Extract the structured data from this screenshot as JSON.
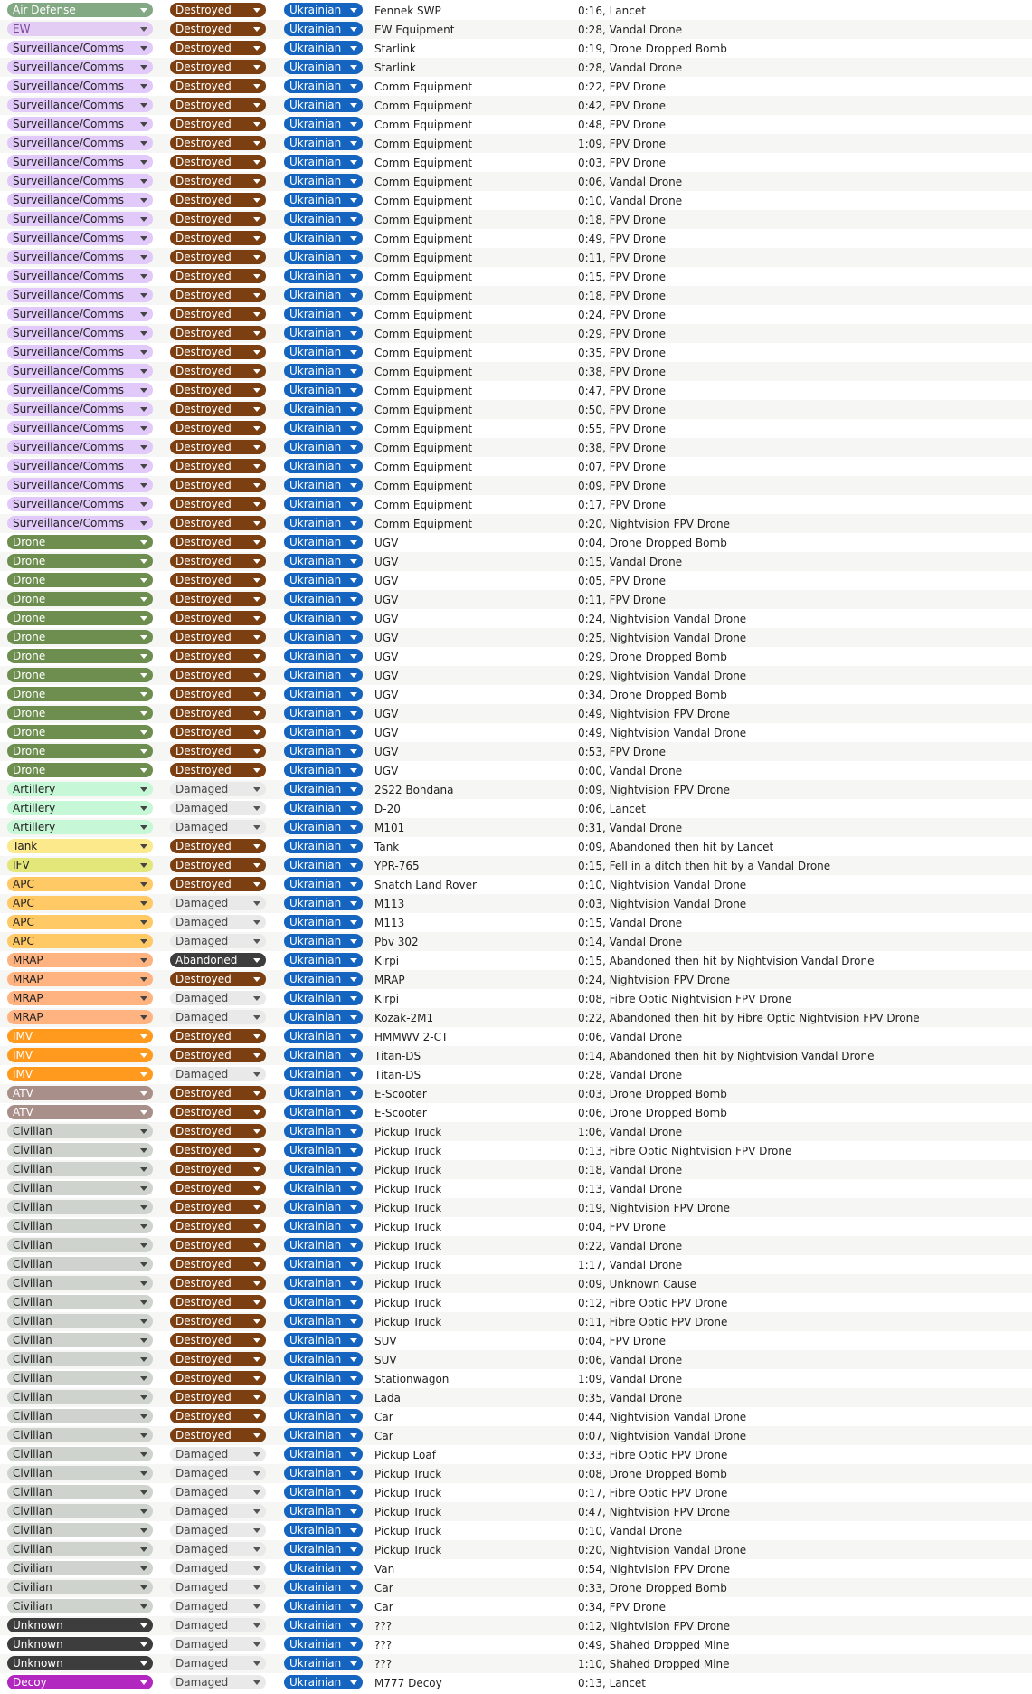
{
  "categories": {
    "Air Defense": {
      "bg": "#83a884",
      "fg": "#ffffff",
      "arrow": "#ffffff"
    },
    "EW": {
      "bg": "#e4cdf5",
      "fg": "#7a4a99",
      "arrow": "#555555"
    },
    "Surveillance/Comms": {
      "bg": "#e1c9f9",
      "fg": "#222222",
      "arrow": "#444444"
    },
    "Drone": {
      "bg": "#6d8e4f",
      "fg": "#ffffff",
      "arrow": "#ffffff"
    },
    "Artillery": {
      "bg": "#c6f7d6",
      "fg": "#222222",
      "arrow": "#444444"
    },
    "Tank": {
      "bg": "#fbe98c",
      "fg": "#222222",
      "arrow": "#444444"
    },
    "IFV": {
      "bg": "#e3e678",
      "fg": "#222222",
      "arrow": "#444444"
    },
    "APC": {
      "bg": "#ffc966",
      "fg": "#222222",
      "arrow": "#444444"
    },
    "MRAP": {
      "bg": "#ffb380",
      "fg": "#222222",
      "arrow": "#444444"
    },
    "IMV": {
      "bg": "#ff9a1f",
      "fg": "#ffffff",
      "arrow": "#ffffff"
    },
    "ATV": {
      "bg": "#a98f8a",
      "fg": "#ffffff",
      "arrow": "#ffffff"
    },
    "Civilian": {
      "bg": "#cfd3cd",
      "fg": "#222222",
      "arrow": "#444444"
    },
    "Unknown": {
      "bg": "#3d3d3d",
      "fg": "#ffffff",
      "arrow": "#ffffff"
    },
    "Decoy": {
      "bg": "#b127bf",
      "fg": "#ffffff",
      "arrow": "#ffffff"
    }
  },
  "statuses": {
    "Destroyed": {
      "bg": "#7b3f11",
      "fg": "#ffffff",
      "arrow": "#ffffff"
    },
    "Damaged": {
      "bg": "#e9e9e9",
      "fg": "#444444",
      "arrow": "#555555"
    },
    "Abandoned": {
      "bg": "#3d3d3d",
      "fg": "#ffffff",
      "arrow": "#ffffff"
    }
  },
  "side_style": {
    "bg": "#1565c0",
    "fg": "#ffffff",
    "arrow": "#ffffff"
  },
  "rows": [
    {
      "category": "Air Defense",
      "status": "Destroyed",
      "side": "Ukrainian",
      "equipment": "Fennek SWP",
      "details": "0:16, Lancet"
    },
    {
      "category": "EW",
      "status": "Destroyed",
      "side": "Ukrainian",
      "equipment": "EW Equipment",
      "details": "0:28, Vandal Drone"
    },
    {
      "category": "Surveillance/Comms",
      "status": "Destroyed",
      "side": "Ukrainian",
      "equipment": "Starlink",
      "details": "0:19, Drone Dropped Bomb"
    },
    {
      "category": "Surveillance/Comms",
      "status": "Destroyed",
      "side": "Ukrainian",
      "equipment": "Starlink",
      "details": "0:28, Vandal Drone"
    },
    {
      "category": "Surveillance/Comms",
      "status": "Destroyed",
      "side": "Ukrainian",
      "equipment": "Comm Equipment",
      "details": "0:22, FPV Drone"
    },
    {
      "category": "Surveillance/Comms",
      "status": "Destroyed",
      "side": "Ukrainian",
      "equipment": "Comm Equipment",
      "details": "0:42, FPV Drone"
    },
    {
      "category": "Surveillance/Comms",
      "status": "Destroyed",
      "side": "Ukrainian",
      "equipment": "Comm Equipment",
      "details": "0:48, FPV Drone"
    },
    {
      "category": "Surveillance/Comms",
      "status": "Destroyed",
      "side": "Ukrainian",
      "equipment": "Comm Equipment",
      "details": "1:09, FPV Drone"
    },
    {
      "category": "Surveillance/Comms",
      "status": "Destroyed",
      "side": "Ukrainian",
      "equipment": "Comm Equipment",
      "details": "0:03, FPV Drone"
    },
    {
      "category": "Surveillance/Comms",
      "status": "Destroyed",
      "side": "Ukrainian",
      "equipment": "Comm Equipment",
      "details": "0:06, Vandal Drone"
    },
    {
      "category": "Surveillance/Comms",
      "status": "Destroyed",
      "side": "Ukrainian",
      "equipment": "Comm Equipment",
      "details": "0:10, Vandal Drone"
    },
    {
      "category": "Surveillance/Comms",
      "status": "Destroyed",
      "side": "Ukrainian",
      "equipment": "Comm Equipment",
      "details": "0:18, FPV Drone"
    },
    {
      "category": "Surveillance/Comms",
      "status": "Destroyed",
      "side": "Ukrainian",
      "equipment": "Comm Equipment",
      "details": "0:49, FPV Drone"
    },
    {
      "category": "Surveillance/Comms",
      "status": "Destroyed",
      "side": "Ukrainian",
      "equipment": "Comm Equipment",
      "details": "0:11, FPV Drone"
    },
    {
      "category": "Surveillance/Comms",
      "status": "Destroyed",
      "side": "Ukrainian",
      "equipment": "Comm Equipment",
      "details": "0:15, FPV Drone"
    },
    {
      "category": "Surveillance/Comms",
      "status": "Destroyed",
      "side": "Ukrainian",
      "equipment": "Comm Equipment",
      "details": "0:18, FPV Drone"
    },
    {
      "category": "Surveillance/Comms",
      "status": "Destroyed",
      "side": "Ukrainian",
      "equipment": "Comm Equipment",
      "details": "0:24, FPV Drone"
    },
    {
      "category": "Surveillance/Comms",
      "status": "Destroyed",
      "side": "Ukrainian",
      "equipment": "Comm Equipment",
      "details": "0:29, FPV Drone"
    },
    {
      "category": "Surveillance/Comms",
      "status": "Destroyed",
      "side": "Ukrainian",
      "equipment": "Comm Equipment",
      "details": "0:35, FPV Drone"
    },
    {
      "category": "Surveillance/Comms",
      "status": "Destroyed",
      "side": "Ukrainian",
      "equipment": "Comm Equipment",
      "details": "0:38, FPV Drone"
    },
    {
      "category": "Surveillance/Comms",
      "status": "Destroyed",
      "side": "Ukrainian",
      "equipment": "Comm Equipment",
      "details": "0:47, FPV Drone"
    },
    {
      "category": "Surveillance/Comms",
      "status": "Destroyed",
      "side": "Ukrainian",
      "equipment": "Comm Equipment",
      "details": "0:50, FPV Drone"
    },
    {
      "category": "Surveillance/Comms",
      "status": "Destroyed",
      "side": "Ukrainian",
      "equipment": "Comm Equipment",
      "details": "0:55, FPV Drone"
    },
    {
      "category": "Surveillance/Comms",
      "status": "Destroyed",
      "side": "Ukrainian",
      "equipment": "Comm Equipment",
      "details": "0:38, FPV Drone"
    },
    {
      "category": "Surveillance/Comms",
      "status": "Destroyed",
      "side": "Ukrainian",
      "equipment": "Comm Equipment",
      "details": "0:07, FPV Drone"
    },
    {
      "category": "Surveillance/Comms",
      "status": "Destroyed",
      "side": "Ukrainian",
      "equipment": "Comm Equipment",
      "details": "0:09, FPV Drone"
    },
    {
      "category": "Surveillance/Comms",
      "status": "Destroyed",
      "side": "Ukrainian",
      "equipment": "Comm Equipment",
      "details": "0:17, FPV Drone"
    },
    {
      "category": "Surveillance/Comms",
      "status": "Destroyed",
      "side": "Ukrainian",
      "equipment": "Comm Equipment",
      "details": "0:20, Nightvision FPV Drone"
    },
    {
      "category": "Drone",
      "status": "Destroyed",
      "side": "Ukrainian",
      "equipment": "UGV",
      "details": "0:04, Drone Dropped Bomb"
    },
    {
      "category": "Drone",
      "status": "Destroyed",
      "side": "Ukrainian",
      "equipment": "UGV",
      "details": "0:15, Vandal Drone"
    },
    {
      "category": "Drone",
      "status": "Destroyed",
      "side": "Ukrainian",
      "equipment": "UGV",
      "details": "0:05, FPV Drone"
    },
    {
      "category": "Drone",
      "status": "Destroyed",
      "side": "Ukrainian",
      "equipment": "UGV",
      "details": "0:11, FPV Drone"
    },
    {
      "category": "Drone",
      "status": "Destroyed",
      "side": "Ukrainian",
      "equipment": "UGV",
      "details": "0:24, Nightvision Vandal Drone"
    },
    {
      "category": "Drone",
      "status": "Destroyed",
      "side": "Ukrainian",
      "equipment": "UGV",
      "details": "0:25, Nightvision Vandal Drone"
    },
    {
      "category": "Drone",
      "status": "Destroyed",
      "side": "Ukrainian",
      "equipment": "UGV",
      "details": "0:29, Drone Dropped Bomb"
    },
    {
      "category": "Drone",
      "status": "Destroyed",
      "side": "Ukrainian",
      "equipment": "UGV",
      "details": "0:29, Nightvision Vandal Drone"
    },
    {
      "category": "Drone",
      "status": "Destroyed",
      "side": "Ukrainian",
      "equipment": "UGV",
      "details": "0:34, Drone Dropped Bomb"
    },
    {
      "category": "Drone",
      "status": "Destroyed",
      "side": "Ukrainian",
      "equipment": "UGV",
      "details": "0:49, Nightvision FPV Drone"
    },
    {
      "category": "Drone",
      "status": "Destroyed",
      "side": "Ukrainian",
      "equipment": "UGV",
      "details": "0:49, Nightvision Vandal Drone"
    },
    {
      "category": "Drone",
      "status": "Destroyed",
      "side": "Ukrainian",
      "equipment": "UGV",
      "details": "0:53, FPV Drone"
    },
    {
      "category": "Drone",
      "status": "Destroyed",
      "side": "Ukrainian",
      "equipment": "UGV",
      "details": "0:00, Vandal Drone"
    },
    {
      "category": "Artillery",
      "status": "Damaged",
      "side": "Ukrainian",
      "equipment": "2S22 Bohdana",
      "details": "0:09, Nightvision FPV Drone"
    },
    {
      "category": "Artillery",
      "status": "Damaged",
      "side": "Ukrainian",
      "equipment": "D-20",
      "details": "0:06, Lancet"
    },
    {
      "category": "Artillery",
      "status": "Damaged",
      "side": "Ukrainian",
      "equipment": "M101",
      "details": "0:31, Vandal Drone"
    },
    {
      "category": "Tank",
      "status": "Destroyed",
      "side": "Ukrainian",
      "equipment": "Tank",
      "details": "0:09, Abandoned then hit by Lancet"
    },
    {
      "category": "IFV",
      "status": "Destroyed",
      "side": "Ukrainian",
      "equipment": "YPR-765",
      "details": "0:15, Fell in a ditch then hit by a Vandal Drone"
    },
    {
      "category": "APC",
      "status": "Destroyed",
      "side": "Ukrainian",
      "equipment": "Snatch Land Rover",
      "details": "0:10, Nightvision Vandal Drone"
    },
    {
      "category": "APC",
      "status": "Damaged",
      "side": "Ukrainian",
      "equipment": "M113",
      "details": "0:03, Nightvision Vandal Drone"
    },
    {
      "category": "APC",
      "status": "Damaged",
      "side": "Ukrainian",
      "equipment": "M113",
      "details": "0:15, Vandal Drone"
    },
    {
      "category": "APC",
      "status": "Damaged",
      "side": "Ukrainian",
      "equipment": "Pbv 302",
      "details": "0:14, Vandal Drone"
    },
    {
      "category": "MRAP",
      "status": "Abandoned",
      "side": "Ukrainian",
      "equipment": "Kirpi",
      "details": "0:15, Abandoned then hit by Nightvision Vandal Drone"
    },
    {
      "category": "MRAP",
      "status": "Destroyed",
      "side": "Ukrainian",
      "equipment": "MRAP",
      "details": "0:24, Nightvision FPV Drone"
    },
    {
      "category": "MRAP",
      "status": "Damaged",
      "side": "Ukrainian",
      "equipment": "Kirpi",
      "details": "0:08, Fibre Optic Nightvision FPV Drone"
    },
    {
      "category": "MRAP",
      "status": "Damaged",
      "side": "Ukrainian",
      "equipment": "Kozak-2M1",
      "details": "0:22, Abandoned then hit by Fibre Optic Nightvision FPV Drone"
    },
    {
      "category": "IMV",
      "status": "Destroyed",
      "side": "Ukrainian",
      "equipment": "HMMWV 2-CT",
      "details": "0:06, Vandal Drone"
    },
    {
      "category": "IMV",
      "status": "Destroyed",
      "side": "Ukrainian",
      "equipment": "Titan-DS",
      "details": "0:14, Abandoned then hit by Nightvision Vandal Drone"
    },
    {
      "category": "IMV",
      "status": "Damaged",
      "side": "Ukrainian",
      "equipment": "Titan-DS",
      "details": "0:28, Vandal Drone"
    },
    {
      "category": "ATV",
      "status": "Destroyed",
      "side": "Ukrainian",
      "equipment": "E-Scooter",
      "details": "0:03, Drone Dropped Bomb"
    },
    {
      "category": "ATV",
      "status": "Destroyed",
      "side": "Ukrainian",
      "equipment": "E-Scooter",
      "details": "0:06, Drone Dropped Bomb"
    },
    {
      "category": "Civilian",
      "status": "Destroyed",
      "side": "Ukrainian",
      "equipment": "Pickup Truck",
      "details": "1:06, Vandal Drone"
    },
    {
      "category": "Civilian",
      "status": "Destroyed",
      "side": "Ukrainian",
      "equipment": "Pickup Truck",
      "details": "0:13, Fibre Optic Nightvision FPV Drone"
    },
    {
      "category": "Civilian",
      "status": "Destroyed",
      "side": "Ukrainian",
      "equipment": "Pickup Truck",
      "details": "0:18, Vandal Drone"
    },
    {
      "category": "Civilian",
      "status": "Destroyed",
      "side": "Ukrainian",
      "equipment": "Pickup Truck",
      "details": "0:13, Vandal Drone"
    },
    {
      "category": "Civilian",
      "status": "Destroyed",
      "side": "Ukrainian",
      "equipment": "Pickup Truck",
      "details": "0:19, Nightvision FPV Drone"
    },
    {
      "category": "Civilian",
      "status": "Destroyed",
      "side": "Ukrainian",
      "equipment": "Pickup Truck",
      "details": "0:04, FPV Drone"
    },
    {
      "category": "Civilian",
      "status": "Destroyed",
      "side": "Ukrainian",
      "equipment": "Pickup Truck",
      "details": "0:22, Vandal Drone"
    },
    {
      "category": "Civilian",
      "status": "Destroyed",
      "side": "Ukrainian",
      "equipment": "Pickup Truck",
      "details": "1:17, Vandal Drone"
    },
    {
      "category": "Civilian",
      "status": "Destroyed",
      "side": "Ukrainian",
      "equipment": "Pickup Truck",
      "details": "0:09, Unknown Cause"
    },
    {
      "category": "Civilian",
      "status": "Destroyed",
      "side": "Ukrainian",
      "equipment": "Pickup Truck",
      "details": "0:12, Fibre Optic FPV Drone"
    },
    {
      "category": "Civilian",
      "status": "Destroyed",
      "side": "Ukrainian",
      "equipment": "Pickup Truck",
      "details": "0:11, Fibre Optic FPV Drone"
    },
    {
      "category": "Civilian",
      "status": "Destroyed",
      "side": "Ukrainian",
      "equipment": "SUV",
      "details": "0:04, FPV Drone"
    },
    {
      "category": "Civilian",
      "status": "Destroyed",
      "side": "Ukrainian",
      "equipment": "SUV",
      "details": "0:06, Vandal Drone"
    },
    {
      "category": "Civilian",
      "status": "Destroyed",
      "side": "Ukrainian",
      "equipment": "Stationwagon",
      "details": "1:09, Vandal Drone"
    },
    {
      "category": "Civilian",
      "status": "Destroyed",
      "side": "Ukrainian",
      "equipment": "Lada",
      "details": "0:35, Vandal Drone"
    },
    {
      "category": "Civilian",
      "status": "Destroyed",
      "side": "Ukrainian",
      "equipment": "Car",
      "details": "0:44, Nightvision Vandal Drone"
    },
    {
      "category": "Civilian",
      "status": "Destroyed",
      "side": "Ukrainian",
      "equipment": "Car",
      "details": "0:07, Nightvision Vandal Drone"
    },
    {
      "category": "Civilian",
      "status": "Damaged",
      "side": "Ukrainian",
      "equipment": "Pickup Loaf",
      "details": "0:33, Fibre Optic FPV Drone"
    },
    {
      "category": "Civilian",
      "status": "Damaged",
      "side": "Ukrainian",
      "equipment": "Pickup Truck",
      "details": "0:08, Drone Dropped Bomb"
    },
    {
      "category": "Civilian",
      "status": "Damaged",
      "side": "Ukrainian",
      "equipment": "Pickup Truck",
      "details": "0:17, Fibre Optic FPV Drone"
    },
    {
      "category": "Civilian",
      "status": "Damaged",
      "side": "Ukrainian",
      "equipment": "Pickup Truck",
      "details": "0:47, Nightvision FPV Drone"
    },
    {
      "category": "Civilian",
      "status": "Damaged",
      "side": "Ukrainian",
      "equipment": "Pickup Truck",
      "details": "0:10, Vandal Drone"
    },
    {
      "category": "Civilian",
      "status": "Damaged",
      "side": "Ukrainian",
      "equipment": "Pickup Truck",
      "details": "0:20, Nightvision Vandal Drone"
    },
    {
      "category": "Civilian",
      "status": "Damaged",
      "side": "Ukrainian",
      "equipment": "Van",
      "details": "0:54, Nightvision FPV Drone"
    },
    {
      "category": "Civilian",
      "status": "Damaged",
      "side": "Ukrainian",
      "equipment": "Car",
      "details": "0:33, Drone Dropped Bomb"
    },
    {
      "category": "Civilian",
      "status": "Damaged",
      "side": "Ukrainian",
      "equipment": "Car",
      "details": "0:34, FPV Drone"
    },
    {
      "category": "Unknown",
      "status": "Damaged",
      "side": "Ukrainian",
      "equipment": "???",
      "details": "0:12, Nightvision FPV Drone"
    },
    {
      "category": "Unknown",
      "status": "Damaged",
      "side": "Ukrainian",
      "equipment": "???",
      "details": "0:49, Shahed Dropped Mine"
    },
    {
      "category": "Unknown",
      "status": "Damaged",
      "side": "Ukrainian",
      "equipment": "???",
      "details": "1:10, Shahed Dropped Mine"
    },
    {
      "category": "Decoy",
      "status": "Damaged",
      "side": "Ukrainian",
      "equipment": "M777 Decoy",
      "details": "0:13, Lancet"
    }
  ]
}
